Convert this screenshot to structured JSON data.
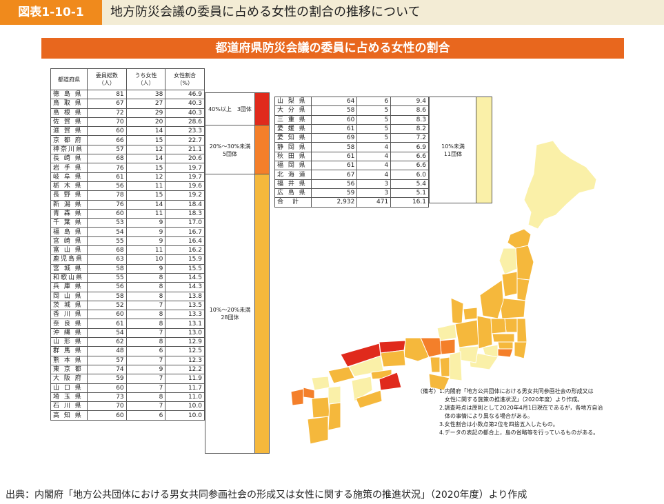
{
  "header": {
    "figure_no": "図表1-10-1",
    "title": "地方防災会議の委員に占める女性の割合の推移について"
  },
  "band_title": "都道府県防災会議の委員に占める女性の割合",
  "colors": {
    "g40": "#e02a1c",
    "g20": "#f47f2a",
    "g10": "#f5b83c",
    "glow": "#faf0a8"
  },
  "chart_data": {
    "type": "table",
    "title": "都道府県防災会議の委員に占める女性の割合",
    "columns": [
      "都道府県",
      "委員総数\n（人）",
      "うち女性\n（人）",
      "女性割合\n（%）"
    ],
    "rows_left": [
      [
        "徳 島 県",
        "81",
        "38",
        "46.9"
      ],
      [
        "鳥 取 県",
        "67",
        "27",
        "40.3"
      ],
      [
        "島 根 県",
        "72",
        "29",
        "40.3"
      ],
      [
        "佐 賀 県",
        "70",
        "20",
        "28.6"
      ],
      [
        "滋 賀 県",
        "60",
        "14",
        "23.3"
      ],
      [
        "京 都 府",
        "66",
        "15",
        "22.7"
      ],
      [
        "神奈川県",
        "57",
        "12",
        "21.1"
      ],
      [
        "長 崎 県",
        "68",
        "14",
        "20.6"
      ],
      [
        "岩 手 県",
        "76",
        "15",
        "19.7"
      ],
      [
        "岐 阜 県",
        "61",
        "12",
        "19.7"
      ],
      [
        "栃 木 県",
        "56",
        "11",
        "19.6"
      ],
      [
        "長 野 県",
        "78",
        "15",
        "19.2"
      ],
      [
        "新 潟 県",
        "76",
        "14",
        "18.4"
      ],
      [
        "青 森 県",
        "60",
        "11",
        "18.3"
      ],
      [
        "千 葉 県",
        "53",
        "9",
        "17.0"
      ],
      [
        "福 島 県",
        "54",
        "9",
        "16.7"
      ],
      [
        "宮 崎 県",
        "55",
        "9",
        "16.4"
      ],
      [
        "富 山 県",
        "68",
        "11",
        "16.2"
      ],
      [
        "鹿児島県",
        "63",
        "10",
        "15.9"
      ],
      [
        "宮 城 県",
        "58",
        "9",
        "15.5"
      ],
      [
        "和歌山県",
        "55",
        "8",
        "14.5"
      ],
      [
        "兵 庫 県",
        "56",
        "8",
        "14.3"
      ],
      [
        "岡 山 県",
        "58",
        "8",
        "13.8"
      ],
      [
        "茨 城 県",
        "52",
        "7",
        "13.5"
      ],
      [
        "香 川 県",
        "60",
        "8",
        "13.3"
      ],
      [
        "奈 良 県",
        "61",
        "8",
        "13.1"
      ],
      [
        "沖 縄 県",
        "54",
        "7",
        "13.0"
      ],
      [
        "山 形 県",
        "62",
        "8",
        "12.9"
      ],
      [
        "群 馬 県",
        "48",
        "6",
        "12.5"
      ],
      [
        "熊 本 県",
        "57",
        "7",
        "12.3"
      ],
      [
        "東 京 都",
        "74",
        "9",
        "12.2"
      ],
      [
        "大 阪 府",
        "59",
        "7",
        "11.9"
      ],
      [
        "山 口 県",
        "60",
        "7",
        "11.7"
      ],
      [
        "埼 玉 県",
        "73",
        "8",
        "11.0"
      ],
      [
        "石 川 県",
        "70",
        "7",
        "10.0"
      ],
      [
        "高 知 県",
        "60",
        "6",
        "10.0"
      ]
    ],
    "rows_right": [
      [
        "山 梨 県",
        "64",
        "6",
        "9.4"
      ],
      [
        "大 分 県",
        "58",
        "5",
        "8.6"
      ],
      [
        "三 重 県",
        "60",
        "5",
        "8.3"
      ],
      [
        "愛 媛 県",
        "61",
        "5",
        "8.2"
      ],
      [
        "愛 知 県",
        "69",
        "5",
        "7.2"
      ],
      [
        "静 岡 県",
        "58",
        "4",
        "6.9"
      ],
      [
        "秋 田 県",
        "61",
        "4",
        "6.6"
      ],
      [
        "福 岡 県",
        "61",
        "4",
        "6.6"
      ],
      [
        "北 海 道",
        "67",
        "4",
        "6.0"
      ],
      [
        "福 井 県",
        "56",
        "3",
        "5.4"
      ],
      [
        "広 島 県",
        "59",
        "3",
        "5.1"
      ],
      [
        "合　計",
        "2,932",
        "471",
        "16.1"
      ]
    ],
    "groups": [
      {
        "label": "40%以上　3団体",
        "color": "#e02a1c"
      },
      {
        "label": "20%～30%未満\n5団体",
        "color": "#f47f2a"
      },
      {
        "label": "10%～20%未満\n28団体",
        "color": "#f5b83c"
      },
      {
        "label": "10%未満\n11団体",
        "color": "#faf0a8"
      }
    ]
  },
  "notes": "（備考）1.内閣府「地方公共団体における男女共同参画社会の形成又は\n　　　　　女性に関する施策の推進状況」（2020年度）より作成。\n　　　　2.調査時点は原則として2020年4月1日現在であるが，各地方自治\n　　　　　体の事情により異なる場合がある。\n　　　　3.女性割合は小数点第2位を四捨五入したもの。\n　　　　4.データの表記の都合上，島の省略等を行っているものがある。",
  "source": "出典：内閣府「地方公共団体における男女共同参画社会の形成又は女性に関する施策の推進状況」（2020年度）より作成"
}
